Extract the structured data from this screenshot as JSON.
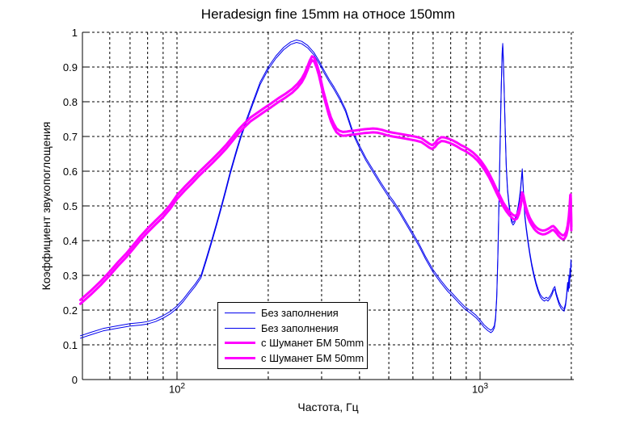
{
  "title": "Heradesign fine 15mm на относе 150mm",
  "legend": {
    "items": [
      {
        "label": "Без заполнения",
        "color": "#0000EE",
        "thickness": 1
      },
      {
        "label": "Без заполнения",
        "color": "#0000EE",
        "thickness": 1
      },
      {
        "label": "с Шуманет БМ 50mm",
        "color": "#FF00FF",
        "thickness": 3
      },
      {
        "label": "с Шуманет БМ 50mm",
        "color": "#FF00FF",
        "thickness": 3
      }
    ],
    "position": "south-west-inside"
  },
  "chart_data": {
    "type": "line",
    "title": "Heradesign fine 15mm на относе 150mm",
    "xlabel": "Частота, Гц",
    "ylabel": "Коэффициент звукопоглощения",
    "x_scale": "log10",
    "xlim": [
      48.75,
      2038
    ],
    "ylim": [
      0,
      1
    ],
    "grid": true,
    "grid_style": "dashed-black",
    "x_gridlines": [
      60,
      70,
      80,
      90,
      100,
      200,
      300,
      400,
      500,
      600,
      700,
      800,
      900,
      1000,
      2000
    ],
    "x_major_ticks": [
      100,
      1000
    ],
    "xticks": [
      {
        "at": 100,
        "base": "10",
        "exp": "2"
      },
      {
        "at": 1000,
        "base": "10",
        "exp": "3"
      }
    ],
    "yticks": [
      {
        "at": 0.0,
        "label": "0"
      },
      {
        "at": 0.1,
        "label": "0.1"
      },
      {
        "at": 0.2,
        "label": "0.2"
      },
      {
        "at": 0.3,
        "label": "0.3"
      },
      {
        "at": 0.4,
        "label": "0.4"
      },
      {
        "at": 0.5,
        "label": "0.5"
      },
      {
        "at": 0.6,
        "label": "0.6"
      },
      {
        "at": 0.7,
        "label": "0.7"
      },
      {
        "at": 0.8,
        "label": "0.8"
      },
      {
        "at": 0.9,
        "label": "0.9"
      },
      {
        "at": 1.0,
        "label": "1"
      }
    ],
    "series": [
      {
        "name": "Без заполнения",
        "color": "#0000EE",
        "width": 1,
        "points": [
          [
            48,
            0.126
          ],
          [
            52,
            0.136
          ],
          [
            57,
            0.147
          ],
          [
            63,
            0.154
          ],
          [
            70,
            0.161
          ],
          [
            76,
            0.164
          ],
          [
            80,
            0.167
          ],
          [
            85,
            0.174
          ],
          [
            90,
            0.184
          ],
          [
            95,
            0.196
          ],
          [
            100,
            0.212
          ],
          [
            105,
            0.232
          ],
          [
            110,
            0.255
          ],
          [
            115,
            0.276
          ],
          [
            120,
            0.3
          ],
          [
            125,
            0.35
          ],
          [
            130,
            0.4
          ],
          [
            135,
            0.45
          ],
          [
            140,
            0.5
          ],
          [
            145,
            0.55
          ],
          [
            150,
            0.6
          ],
          [
            156,
            0.652
          ],
          [
            162,
            0.7
          ],
          [
            169,
            0.746
          ],
          [
            178,
            0.8
          ],
          [
            188,
            0.856
          ],
          [
            200,
            0.9
          ],
          [
            212,
            0.932
          ],
          [
            225,
            0.957
          ],
          [
            237,
            0.972
          ],
          [
            248,
            0.978
          ],
          [
            258,
            0.974
          ],
          [
            270,
            0.962
          ],
          [
            283,
            0.942
          ],
          [
            295,
            0.916
          ],
          [
            305,
            0.892
          ],
          [
            318,
            0.864
          ],
          [
            330,
            0.842
          ],
          [
            345,
            0.812
          ],
          [
            360,
            0.778
          ],
          [
            380,
            0.716
          ],
          [
            400,
            0.674
          ],
          [
            420,
            0.638
          ],
          [
            445,
            0.602
          ],
          [
            470,
            0.568
          ],
          [
            500,
            0.532
          ],
          [
            520,
            0.512
          ],
          [
            540,
            0.49
          ],
          [
            570,
            0.455
          ],
          [
            600,
            0.422
          ],
          [
            630,
            0.39
          ],
          [
            660,
            0.355
          ],
          [
            700,
            0.316
          ],
          [
            740,
            0.287
          ],
          [
            780,
            0.262
          ],
          [
            810,
            0.248
          ],
          [
            850,
            0.228
          ],
          [
            890,
            0.21
          ],
          [
            930,
            0.198
          ],
          [
            970,
            0.185
          ],
          [
            1000,
            0.172
          ],
          [
            1030,
            0.158
          ],
          [
            1060,
            0.148
          ],
          [
            1085,
            0.142
          ],
          [
            1100,
            0.146
          ],
          [
            1115,
            0.156
          ],
          [
            1125,
            0.18
          ],
          [
            1135,
            0.24
          ],
          [
            1145,
            0.36
          ],
          [
            1155,
            0.52
          ],
          [
            1165,
            0.69
          ],
          [
            1175,
            0.85
          ],
          [
            1183,
            0.945
          ],
          [
            1188,
            0.968
          ],
          [
            1193,
            0.93
          ],
          [
            1200,
            0.85
          ],
          [
            1210,
            0.73
          ],
          [
            1220,
            0.62
          ],
          [
            1232,
            0.55
          ],
          [
            1245,
            0.51
          ],
          [
            1258,
            0.48
          ],
          [
            1270,
            0.46
          ],
          [
            1285,
            0.452
          ],
          [
            1300,
            0.458
          ],
          [
            1315,
            0.472
          ],
          [
            1330,
            0.49
          ],
          [
            1345,
            0.515
          ],
          [
            1360,
            0.55
          ],
          [
            1372,
            0.59
          ],
          [
            1378,
            0.607
          ],
          [
            1385,
            0.57
          ],
          [
            1395,
            0.52
          ],
          [
            1405,
            0.475
          ],
          [
            1420,
            0.44
          ],
          [
            1440,
            0.4
          ],
          [
            1460,
            0.365
          ],
          [
            1480,
            0.335
          ],
          [
            1505,
            0.305
          ],
          [
            1530,
            0.28
          ],
          [
            1555,
            0.26
          ],
          [
            1580,
            0.245
          ],
          [
            1605,
            0.237
          ],
          [
            1630,
            0.233
          ],
          [
            1655,
            0.237
          ],
          [
            1675,
            0.233
          ],
          [
            1700,
            0.24
          ],
          [
            1725,
            0.25
          ],
          [
            1745,
            0.262
          ],
          [
            1765,
            0.268
          ],
          [
            1780,
            0.252
          ],
          [
            1800,
            0.238
          ],
          [
            1825,
            0.222
          ],
          [
            1850,
            0.212
          ],
          [
            1875,
            0.206
          ],
          [
            1895,
            0.204
          ],
          [
            1915,
            0.22
          ],
          [
            1930,
            0.245
          ],
          [
            1945,
            0.28
          ],
          [
            1955,
            0.26
          ],
          [
            1965,
            0.3
          ],
          [
            1972,
            0.27
          ],
          [
            1980,
            0.32
          ],
          [
            1988,
            0.3
          ],
          [
            1994,
            0.345
          ],
          [
            2000,
            0.33
          ]
        ]
      },
      {
        "name": "Без заполнения",
        "color": "#0000EE",
        "width": 1,
        "twin_of": 0,
        "value_offset": -0.007
      },
      {
        "name": "с Шуманет БМ 50mm",
        "color": "#FF00FF",
        "width": 3,
        "points": [
          [
            48,
            0.218
          ],
          [
            52,
            0.245
          ],
          [
            56,
            0.272
          ],
          [
            60,
            0.3
          ],
          [
            64,
            0.328
          ],
          [
            68,
            0.352
          ],
          [
            72,
            0.378
          ],
          [
            76,
            0.403
          ],
          [
            80,
            0.424
          ],
          [
            85,
            0.447
          ],
          [
            90,
            0.468
          ],
          [
            95,
            0.492
          ],
          [
            100,
            0.52
          ],
          [
            106,
            0.544
          ],
          [
            112,
            0.565
          ],
          [
            118,
            0.586
          ],
          [
            124,
            0.604
          ],
          [
            131,
            0.624
          ],
          [
            138,
            0.644
          ],
          [
            146,
            0.667
          ],
          [
            154,
            0.692
          ],
          [
            160,
            0.71
          ],
          [
            167,
            0.727
          ],
          [
            175,
            0.744
          ],
          [
            184,
            0.757
          ],
          [
            194,
            0.771
          ],
          [
            205,
            0.785
          ],
          [
            216,
            0.799
          ],
          [
            228,
            0.812
          ],
          [
            240,
            0.826
          ],
          [
            250,
            0.841
          ],
          [
            258,
            0.856
          ],
          [
            264,
            0.872
          ],
          [
            269,
            0.889
          ],
          [
            274,
            0.907
          ],
          [
            279,
            0.92
          ],
          [
            284,
            0.915
          ],
          [
            289,
            0.898
          ],
          [
            294,
            0.876
          ],
          [
            299,
            0.848
          ],
          [
            304,
            0.82
          ],
          [
            310,
            0.793
          ],
          [
            316,
            0.766
          ],
          [
            322,
            0.744
          ],
          [
            329,
            0.726
          ],
          [
            336,
            0.712
          ],
          [
            344,
            0.705
          ],
          [
            353,
            0.702
          ],
          [
            363,
            0.703
          ],
          [
            374,
            0.705
          ],
          [
            386,
            0.706
          ],
          [
            400,
            0.708
          ],
          [
            416,
            0.71
          ],
          [
            432,
            0.711
          ],
          [
            443,
            0.712
          ],
          [
            458,
            0.711
          ],
          [
            475,
            0.708
          ],
          [
            495,
            0.703
          ],
          [
            515,
            0.7
          ],
          [
            540,
            0.697
          ],
          [
            565,
            0.694
          ],
          [
            590,
            0.691
          ],
          [
            615,
            0.688
          ],
          [
            640,
            0.684
          ],
          [
            660,
            0.676
          ],
          [
            680,
            0.668
          ],
          [
            695,
            0.664
          ],
          [
            710,
            0.67
          ],
          [
            725,
            0.68
          ],
          [
            745,
            0.687
          ],
          [
            765,
            0.686
          ],
          [
            790,
            0.682
          ],
          [
            815,
            0.677
          ],
          [
            840,
            0.671
          ],
          [
            865,
            0.664
          ],
          [
            890,
            0.659
          ],
          [
            920,
            0.651
          ],
          [
            950,
            0.642
          ],
          [
            980,
            0.631
          ],
          [
            1010,
            0.617
          ],
          [
            1040,
            0.601
          ],
          [
            1070,
            0.583
          ],
          [
            1100,
            0.562
          ],
          [
            1130,
            0.54
          ],
          [
            1160,
            0.52
          ],
          [
            1190,
            0.5
          ],
          [
            1220,
            0.485
          ],
          [
            1250,
            0.473
          ],
          [
            1280,
            0.464
          ],
          [
            1305,
            0.46
          ],
          [
            1325,
            0.464
          ],
          [
            1345,
            0.478
          ],
          [
            1362,
            0.5
          ],
          [
            1376,
            0.528
          ],
          [
            1390,
            0.52
          ],
          [
            1405,
            0.5
          ],
          [
            1420,
            0.483
          ],
          [
            1440,
            0.467
          ],
          [
            1460,
            0.454
          ],
          [
            1482,
            0.444
          ],
          [
            1505,
            0.435
          ],
          [
            1530,
            0.428
          ],
          [
            1555,
            0.423
          ],
          [
            1580,
            0.42
          ],
          [
            1610,
            0.418
          ],
          [
            1640,
            0.419
          ],
          [
            1670,
            0.422
          ],
          [
            1700,
            0.426
          ],
          [
            1725,
            0.43
          ],
          [
            1745,
            0.431
          ],
          [
            1765,
            0.427
          ],
          [
            1790,
            0.421
          ],
          [
            1815,
            0.414
          ],
          [
            1845,
            0.408
          ],
          [
            1875,
            0.404
          ],
          [
            1900,
            0.406
          ],
          [
            1925,
            0.415
          ],
          [
            1945,
            0.432
          ],
          [
            1962,
            0.458
          ],
          [
            1975,
            0.49
          ],
          [
            1985,
            0.52
          ],
          [
            1991,
            0.522
          ],
          [
            1996,
            0.48
          ],
          [
            2000,
            0.43
          ]
        ]
      },
      {
        "name": "с Шуманет БМ 50mm",
        "color": "#FF00FF",
        "width": 3,
        "twin_of": 2,
        "value_offset": 0.011
      }
    ]
  }
}
